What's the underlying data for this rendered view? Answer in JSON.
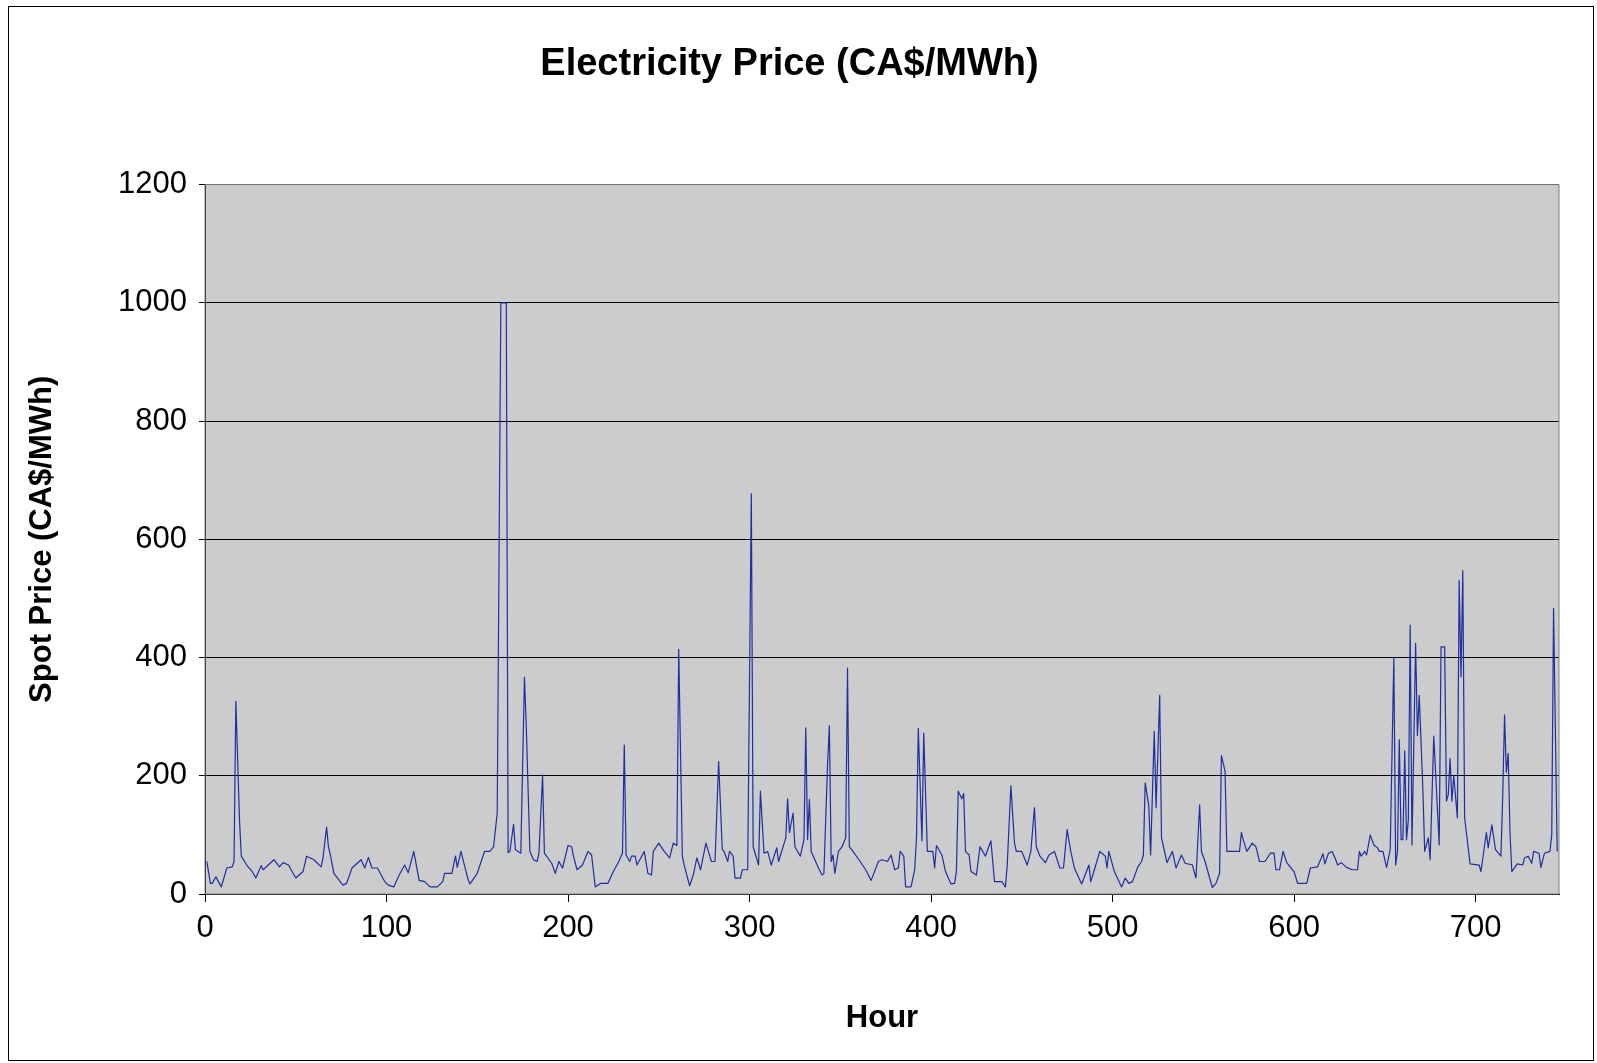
{
  "chart_data": {
    "type": "line",
    "title": "Electricity Price (CA$/MWh)",
    "xlabel": "Hour",
    "ylabel": "Spot Price (CA$/MWh)",
    "xlim": [
      0,
      746
    ],
    "xticks": [
      0,
      100,
      200,
      300,
      400,
      500,
      600,
      700
    ],
    "ylim": [
      0,
      1200
    ],
    "yticks": [
      0,
      200,
      400,
      600,
      800,
      1000,
      1200
    ],
    "grid": "y",
    "legend": false,
    "marker": "none",
    "line_style": "solid",
    "series": [
      {
        "color": "#1f2f9f",
        "x": [
          1,
          3,
          4,
          6,
          9,
          12,
          15,
          16,
          17,
          19,
          20,
          23,
          26,
          28,
          31,
          32,
          38,
          41,
          43,
          46,
          50,
          54,
          56,
          60,
          64,
          65,
          67,
          68,
          69,
          71,
          76,
          78,
          81,
          86,
          88,
          90,
          92,
          95,
          99,
          101,
          104,
          107,
          110,
          112,
          115,
          118,
          121,
          124,
          128,
          131,
          132,
          136,
          138,
          139,
          141,
          145,
          146,
          150,
          154,
          157,
          159,
          161,
          163,
          166,
          167,
          168,
          170,
          171,
          174,
          176,
          177,
          179,
          181,
          183,
          184,
          186,
          187,
          191,
          193,
          195,
          197,
          200,
          202,
          203,
          205,
          208,
          211,
          213,
          215,
          218,
          222,
          225,
          228,
          230,
          231,
          232,
          234,
          235,
          237,
          238,
          242,
          244,
          246,
          247,
          250,
          253,
          256,
          258,
          260,
          261,
          263,
          264,
          267,
          269,
          271,
          273,
          276,
          279,
          281,
          283,
          285,
          286,
          288,
          289,
          291,
          292,
          295,
          296,
          299,
          301,
          302,
          305,
          306,
          308,
          310,
          312,
          315,
          316,
          320,
          321,
          322,
          324,
          325,
          328,
          330,
          331,
          332,
          333,
          334,
          338,
          340,
          341,
          343,
          344,
          345,
          346,
          347,
          349,
          351,
          353,
          354,
          355,
          357,
          361,
          364,
          367,
          371,
          373,
          376,
          378,
          380,
          382,
          383,
          385,
          386,
          389,
          391,
          392,
          393,
          395,
          396,
          398,
          401,
          402,
          403,
          406,
          408,
          411,
          413,
          414,
          415,
          417,
          418,
          419,
          421,
          422,
          425,
          427,
          430,
          433,
          435,
          439,
          441,
          442,
          444,
          446,
          447,
          450,
          453,
          455,
          457,
          458,
          460,
          463,
          465,
          468,
          471,
          473,
          475,
          477,
          479,
          483,
          487,
          488,
          490,
          493,
          496,
          497,
          498,
          501,
          505,
          507,
          509,
          511,
          514,
          516,
          517,
          518,
          520,
          521,
          523,
          524,
          526,
          527,
          530,
          533,
          535,
          538,
          540,
          544,
          546,
          548,
          549,
          551,
          555,
          557,
          559,
          560,
          562,
          563,
          570,
          571,
          572,
          574,
          577,
          579,
          581,
          584,
          587,
          589,
          590,
          592,
          594,
          596,
          600,
          602,
          607,
          609,
          613,
          616,
          617,
          619,
          621,
          623,
          624,
          626,
          629,
          632,
          635,
          636,
          637,
          639,
          640,
          642,
          644,
          646,
          647,
          649,
          651,
          653,
          655,
          656,
          657,
          658,
          659,
          660,
          661,
          662,
          663,
          664,
          665,
          667,
          668,
          669,
          671,
          672,
          674,
          675,
          677,
          680,
          681,
          682,
          683,
          684,
          685,
          686,
          687,
          688,
          690,
          691,
          692,
          693,
          694,
          697,
          702,
          703,
          706,
          707,
          709,
          711,
          714,
          715,
          716,
          717,
          718,
          719,
          720,
          723,
          726,
          727,
          729,
          731,
          732,
          735,
          736,
          738,
          741,
          742,
          743,
          745
        ],
        "values": [
          55,
          18,
          18,
          29,
          12,
          44,
          46,
          55,
          326,
          126,
          64,
          49,
          38,
          27,
          48,
          41,
          58,
          46,
          53,
          49,
          27,
          38,
          64,
          58,
          46,
          61,
          113,
          80,
          67,
          35,
          15,
          18,
          44,
          58,
          44,
          62,
          44,
          44,
          21,
          15,
          12,
          32,
          49,
          36,
          72,
          23,
          21,
          12,
          12,
          21,
          35,
          35,
          64,
          45,
          72,
          24,
          17,
          35,
          72,
          72,
          80,
          137,
          1000,
          1000,
          70,
          72,
          118,
          75,
          69,
          367,
          285,
          72,
          58,
          55,
          69,
          201,
          69,
          52,
          35,
          55,
          44,
          82,
          80,
          64,
          41,
          49,
          72,
          66,
          12,
          18,
          18,
          38,
          55,
          69,
          252,
          66,
          55,
          64,
          64,
          49,
          72,
          35,
          32,
          72,
          86,
          72,
          61,
          86,
          82,
          414,
          64,
          49,
          14,
          32,
          61,
          41,
          86,
          55,
          55,
          224,
          75,
          72,
          55,
          72,
          64,
          27,
          27,
          41,
          41,
          677,
          80,
          49,
          174,
          69,
          72,
          49,
          78,
          55,
          95,
          161,
          104,
          137,
          80,
          64,
          92,
          281,
          92,
          160,
          72,
          44,
          32,
          35,
          219,
          285,
          55,
          66,
          35,
          72,
          80,
          95,
          382,
          80,
          72,
          55,
          41,
          23,
          55,
          58,
          55,
          66,
          41,
          44,
          72,
          64,
          12,
          12,
          41,
          95,
          280,
          90,
          272,
          72,
          72,
          44,
          82,
          66,
          38,
          17,
          18,
          38,
          174,
          161,
          170,
          72,
          66,
          38,
          32,
          80,
          64,
          90,
          21,
          21,
          12,
          49,
          183,
          86,
          72,
          72,
          49,
          72,
          146,
          80,
          64,
          53,
          66,
          72,
          44,
          44,
          109,
          72,
          44,
          17,
          49,
          21,
          41,
          72,
          64,
          44,
          72,
          38,
          12,
          27,
          18,
          21,
          46,
          55,
          66,
          188,
          149,
          66,
          275,
          146,
          336,
          95,
          53,
          72,
          44,
          66,
          52,
          49,
          27,
          151,
          72,
          55,
          11,
          18,
          35,
          234,
          208,
          72,
          72,
          104,
          92,
          72,
          86,
          80,
          55,
          55,
          69,
          69,
          41,
          41,
          72,
          53,
          38,
          18,
          18,
          44,
          46,
          68,
          51,
          69,
          72,
          58,
          49,
          53,
          45,
          41,
          41,
          72,
          64,
          72,
          66,
          100,
          83,
          78,
          72,
          72,
          45,
          75,
          400,
          49,
          72,
          261,
          92,
          92,
          242,
          92,
          126,
          455,
          83,
          424,
          268,
          336,
          177,
          72,
          95,
          58,
          267,
          83,
          418,
          418,
          418,
          157,
          168,
          229,
          157,
          200,
          129,
          530,
          367,
          547,
          129,
          51,
          49,
          38,
          104,
          78,
          117,
          75,
          64,
          166,
          303,
          206,
          238,
          104,
          38,
          51,
          49,
          61,
          64,
          52,
          72,
          69,
          45,
          69,
          72,
          100,
          483,
          72
        ]
      }
    ]
  }
}
